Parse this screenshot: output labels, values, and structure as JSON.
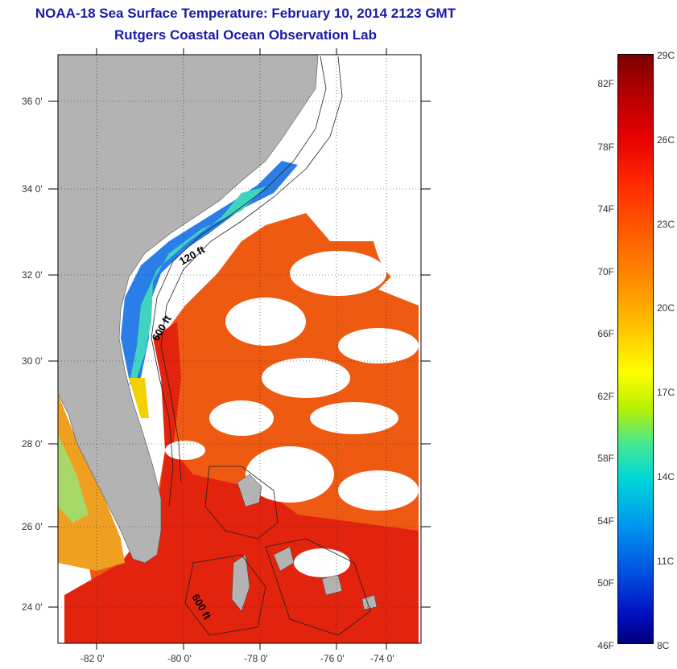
{
  "header": {
    "title": "NOAA-18 Sea Surface Temperature:  February 10, 2014 2123 GMT",
    "subtitle": "Rutgers Coastal Ocean Observation Lab"
  },
  "map": {
    "lat_labels": [
      "36 0'",
      "34 0'",
      "32 0'",
      "30 0'",
      "28 0'",
      "26 0'",
      "24 0'"
    ],
    "lon_labels": [
      "-82 0'",
      "-80 0'",
      "-78 0'",
      "-76 0'",
      "-74 0'"
    ],
    "contour_labels": [
      "120 ft",
      "600 ft",
      "600 ft"
    ],
    "colors": {
      "land": "#b3b3b3",
      "cloud": "#ffffff",
      "warm": "#e8200c",
      "cold": "#1c5ae0"
    }
  },
  "colorbar": {
    "fahrenheit": [
      "82F",
      "78F",
      "74F",
      "70F",
      "66F",
      "62F",
      "58F",
      "54F",
      "50F",
      "46F"
    ],
    "celsius": [
      "29C",
      "26C",
      "23C",
      "20C",
      "17C",
      "14C",
      "11C",
      "8C"
    ]
  }
}
